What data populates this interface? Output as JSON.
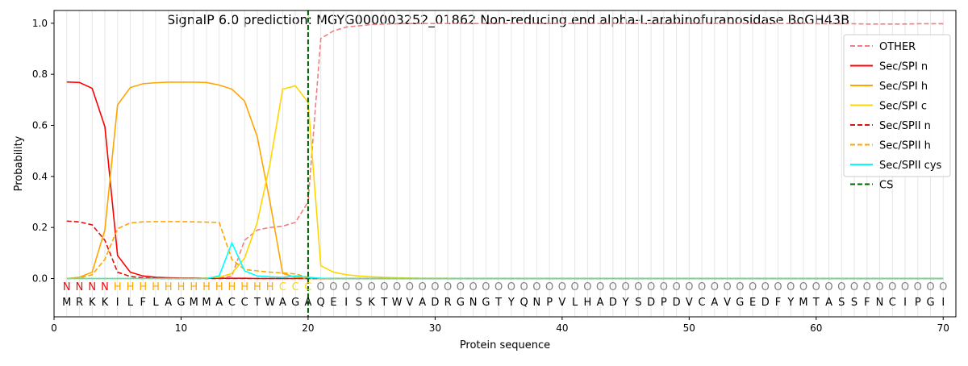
{
  "chart_data": {
    "type": "line",
    "title": "SignalP 6.0 prediction: MGYG000003252_01862 Non-reducing end alpha-L-arabinofuranosidase BoGH43B",
    "xlabel": "Protein sequence",
    "ylabel": "Probability",
    "xlim": [
      0,
      71
    ],
    "ylim": [
      -0.15,
      1.05
    ],
    "xticks": [
      0,
      10,
      20,
      30,
      40,
      50,
      60,
      70
    ],
    "yticks": [
      0.0,
      0.2,
      0.4,
      0.6,
      0.8,
      1.0
    ],
    "ytick_labels": [
      "0.0",
      "0.2",
      "0.4",
      "0.6",
      "0.8",
      "1.0"
    ],
    "grid": "vertical lines at each residue",
    "legend_position": "top-right",
    "sequence": [
      "M",
      "R",
      "K",
      "K",
      "I",
      "L",
      "F",
      "L",
      "A",
      "G",
      "M",
      "M",
      "A",
      "C",
      "C",
      "T",
      "W",
      "A",
      "G",
      "A",
      "Q",
      "E",
      "I",
      "S",
      "K",
      "T",
      "W",
      "V",
      "A",
      "D",
      "R",
      "G",
      "N",
      "G",
      "T",
      "Y",
      "Q",
      "N",
      "P",
      "V",
      "L",
      "H",
      "A",
      "D",
      "Y",
      "S",
      "D",
      "P",
      "D",
      "V",
      "C",
      "A",
      "V",
      "G",
      "E",
      "D",
      "F",
      "Y",
      "M",
      "T",
      "A",
      "S",
      "S",
      "F",
      "N",
      "C",
      "I",
      "P",
      "G",
      "I"
    ],
    "region_labels": [
      "N",
      "N",
      "N",
      "N",
      "H",
      "H",
      "H",
      "H",
      "H",
      "H",
      "H",
      "H",
      "H",
      "H",
      "H",
      "H",
      "H",
      "C",
      "C",
      "C",
      "O",
      "O",
      "O",
      "O",
      "O",
      "O",
      "O",
      "O",
      "O",
      "O",
      "O",
      "O",
      "O",
      "O",
      "O",
      "O",
      "O",
      "O",
      "O",
      "O",
      "O",
      "O",
      "O",
      "O",
      "O",
      "O",
      "O",
      "O",
      "O",
      "O",
      "O",
      "O",
      "O",
      "O",
      "O",
      "O",
      "O",
      "O",
      "O",
      "O",
      "O",
      "O",
      "O",
      "O",
      "O",
      "O",
      "O",
      "O",
      "O",
      "O"
    ],
    "region_colors": {
      "N": "#ff0000",
      "H": "#ffa500",
      "C": "#ffd700",
      "O": "#808080"
    },
    "cs_position": 20,
    "series": [
      {
        "name": "OTHER",
        "color": "#f08080",
        "dash": "dashed",
        "values": [
          0.0,
          0.0,
          0.0,
          0.0,
          0.0,
          0.0,
          0.0,
          0.0,
          0.0,
          0.0,
          0.0,
          0.0,
          0.0,
          0.01,
          0.15,
          0.19,
          0.2,
          0.205,
          0.22,
          0.3,
          0.94,
          0.97,
          0.985,
          0.99,
          0.995,
          0.997,
          0.998,
          0.999,
          0.999,
          0.999,
          0.999,
          0.999,
          0.999,
          0.999,
          0.999,
          0.999,
          0.999,
          0.999,
          0.999,
          0.999,
          0.999,
          0.999,
          0.999,
          0.999,
          0.999,
          0.999,
          0.999,
          0.999,
          0.999,
          0.999,
          0.999,
          0.999,
          0.999,
          0.999,
          0.999,
          0.999,
          0.999,
          0.999,
          0.999,
          0.998,
          0.998,
          0.998,
          0.998,
          0.997,
          0.997,
          0.997,
          0.997,
          0.998,
          0.998,
          0.998
        ]
      },
      {
        "name": "Sec/SPI n",
        "color": "#ff0000",
        "dash": "solid",
        "values": [
          0.77,
          0.768,
          0.745,
          0.595,
          0.09,
          0.025,
          0.01,
          0.005,
          0.003,
          0.002,
          0.002,
          0.001,
          0.001,
          0.001,
          0.001,
          0.0,
          0.0,
          0.0,
          0.0,
          0.0,
          0.0,
          0.0,
          0.0,
          0.0,
          0.0,
          0.0,
          0.0,
          0.0,
          0.0,
          0.0,
          0.0,
          0.0,
          0.0,
          0.0,
          0.0,
          0.0,
          0.0,
          0.0,
          0.0,
          0.0,
          0.0,
          0.0,
          0.0,
          0.0,
          0.0,
          0.0,
          0.0,
          0.0,
          0.0,
          0.0,
          0.0,
          0.0,
          0.0,
          0.0,
          0.0,
          0.0,
          0.0,
          0.0,
          0.0,
          0.0,
          0.0,
          0.0,
          0.0,
          0.0,
          0.0,
          0.0,
          0.0,
          0.0,
          0.0,
          0.0
        ]
      },
      {
        "name": "Sec/SPI h",
        "color": "#ffa500",
        "dash": "solid",
        "values": [
          0.0,
          0.005,
          0.025,
          0.19,
          0.68,
          0.748,
          0.763,
          0.767,
          0.769,
          0.769,
          0.769,
          0.768,
          0.758,
          0.742,
          0.695,
          0.555,
          0.3,
          0.02,
          0.005,
          0.0,
          0.0,
          0.0,
          0.0,
          0.0,
          0.0,
          0.0,
          0.0,
          0.0,
          0.0,
          0.0,
          0.0,
          0.0,
          0.0,
          0.0,
          0.0,
          0.0,
          0.0,
          0.0,
          0.0,
          0.0,
          0.0,
          0.0,
          0.0,
          0.0,
          0.0,
          0.0,
          0.0,
          0.0,
          0.0,
          0.0,
          0.0,
          0.0,
          0.0,
          0.0,
          0.0,
          0.0,
          0.0,
          0.0,
          0.0,
          0.0,
          0.0,
          0.0,
          0.0,
          0.0,
          0.0,
          0.0,
          0.0,
          0.0,
          0.0,
          0.0
        ]
      },
      {
        "name": "Sec/SPI c",
        "color": "#ffd700",
        "dash": "solid",
        "values": [
          0.0,
          0.0,
          0.0,
          0.0,
          0.0,
          0.0,
          0.0,
          0.0,
          0.0,
          0.0,
          0.0,
          0.002,
          0.005,
          0.02,
          0.08,
          0.22,
          0.45,
          0.742,
          0.755,
          0.69,
          0.05,
          0.025,
          0.015,
          0.01,
          0.007,
          0.005,
          0.003,
          0.002,
          0.001,
          0.001,
          0.001,
          0.0,
          0.0,
          0.0,
          0.0,
          0.0,
          0.0,
          0.0,
          0.0,
          0.0,
          0.0,
          0.0,
          0.0,
          0.0,
          0.0,
          0.0,
          0.0,
          0.0,
          0.0,
          0.0,
          0.0,
          0.0,
          0.0,
          0.0,
          0.0,
          0.0,
          0.0,
          0.0,
          0.0,
          0.0,
          0.0,
          0.0,
          0.0,
          0.0,
          0.0,
          0.0,
          0.0,
          0.0,
          0.0,
          0.0
        ]
      },
      {
        "name": "Sec/SPII n",
        "color": "#e01010",
        "dash": "dashed",
        "values": [
          0.225,
          0.222,
          0.21,
          0.15,
          0.025,
          0.008,
          0.003,
          0.001,
          0.0,
          0.0,
          0.0,
          0.0,
          0.0,
          0.0,
          0.0,
          0.0,
          0.0,
          0.0,
          0.0,
          0.0,
          0.0,
          0.0,
          0.0,
          0.0,
          0.0,
          0.0,
          0.0,
          0.0,
          0.0,
          0.0,
          0.0,
          0.0,
          0.0,
          0.0,
          0.0,
          0.0,
          0.0,
          0.0,
          0.0,
          0.0,
          0.0,
          0.0,
          0.0,
          0.0,
          0.0,
          0.0,
          0.0,
          0.0,
          0.0,
          0.0,
          0.0,
          0.0,
          0.0,
          0.0,
          0.0,
          0.0,
          0.0,
          0.0,
          0.0,
          0.0,
          0.0,
          0.0,
          0.0,
          0.0,
          0.0,
          0.0,
          0.0,
          0.0,
          0.0,
          0.0
        ]
      },
      {
        "name": "Sec/SPII h",
        "color": "#ffa500",
        "dash": "dashed",
        "values": [
          0.0,
          0.002,
          0.015,
          0.075,
          0.195,
          0.218,
          0.222,
          0.223,
          0.223,
          0.223,
          0.222,
          0.221,
          0.22,
          0.075,
          0.035,
          0.03,
          0.025,
          0.022,
          0.018,
          0.005,
          0.0,
          0.0,
          0.0,
          0.0,
          0.0,
          0.0,
          0.0,
          0.0,
          0.0,
          0.0,
          0.0,
          0.0,
          0.0,
          0.0,
          0.0,
          0.0,
          0.0,
          0.0,
          0.0,
          0.0,
          0.0,
          0.0,
          0.0,
          0.0,
          0.0,
          0.0,
          0.0,
          0.0,
          0.0,
          0.0,
          0.0,
          0.0,
          0.0,
          0.0,
          0.0,
          0.0,
          0.0,
          0.0,
          0.0,
          0.0,
          0.0,
          0.0,
          0.0,
          0.0,
          0.0,
          0.0,
          0.0,
          0.0,
          0.0,
          0.0
        ]
      },
      {
        "name": "Sec/SPII cys",
        "color": "#00ffff",
        "dash": "solid",
        "values": [
          0.0,
          0.0,
          0.0,
          0.0,
          0.0,
          0.0,
          0.0,
          0.0,
          0.0,
          0.0,
          0.0,
          0.0,
          0.01,
          0.14,
          0.03,
          0.01,
          0.007,
          0.005,
          0.01,
          0.005,
          0.001,
          0.0,
          0.0,
          0.0,
          0.0,
          0.0,
          0.0,
          0.0,
          0.0,
          0.0,
          0.0,
          0.0,
          0.0,
          0.0,
          0.0,
          0.0,
          0.0,
          0.0,
          0.0,
          0.0,
          0.0,
          0.0,
          0.0,
          0.0,
          0.0,
          0.0,
          0.0,
          0.0,
          0.0,
          0.0,
          0.0,
          0.0,
          0.0,
          0.0,
          0.0,
          0.0,
          0.0,
          0.0,
          0.0,
          0.0,
          0.0,
          0.0,
          0.0,
          0.0,
          0.0,
          0.0,
          0.0,
          0.0,
          0.0,
          0.0
        ]
      },
      {
        "name": "CS",
        "color": "#006400",
        "dash": "dashed",
        "vertical_at": 20
      }
    ]
  }
}
